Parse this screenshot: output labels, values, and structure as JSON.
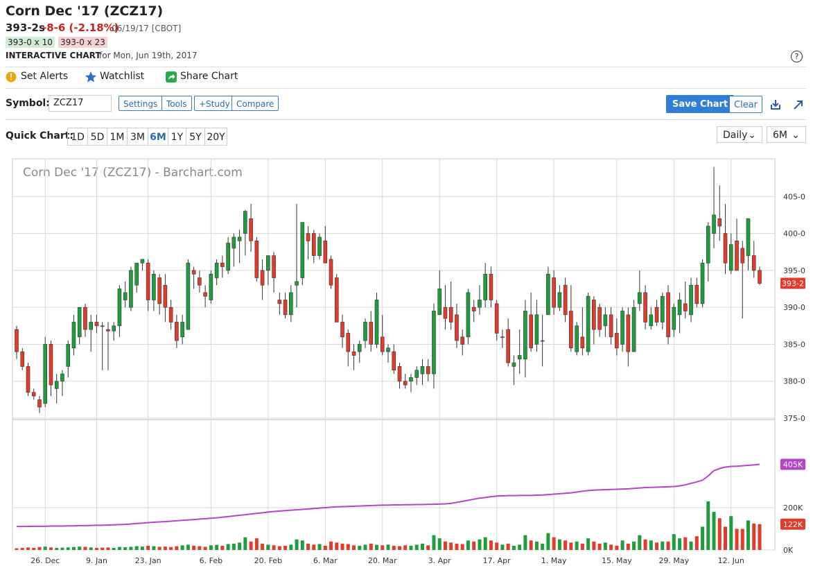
{
  "header": {
    "title": "Corn Dec '17 (ZCZ17)",
    "price": "393-2s",
    "change": "-8-6 (-2.18%)",
    "date": "06/19/17 [CBOT]",
    "bid": "393-0 x 10",
    "ask": "393-0 x 23",
    "chart_label": "INTERACTIVE CHART",
    "chart_for": "for Mon, Jun 19th, 2017",
    "help": "?"
  },
  "toolbar": {
    "items": [
      "Set Alerts",
      "Watchlist",
      "Share Chart"
    ]
  },
  "symbol_row": {
    "label": "Symbol:",
    "symbol": "ZCZ17",
    "buttons": [
      "Settings",
      "Tools",
      "+Study",
      "Compare"
    ],
    "save": "Save Chart",
    "clear": "Clear"
  },
  "quick_chart": {
    "label": "Quick Chart:",
    "ranges": [
      "1D",
      "5D",
      "1M",
      "3M",
      "6M",
      "1Y",
      "5Y",
      "20Y"
    ],
    "interval": "Daily",
    "period": "6M"
  },
  "chart_data": {
    "type": "candlestick",
    "title": "Corn Dec '17 (ZCZ17) - Barchart.com",
    "categories": [
      null,
      null,
      null,
      null,
      null,
      "26. Dec",
      null,
      null,
      null,
      null,
      null,
      null,
      null,
      null,
      "9. Jan",
      null,
      null,
      null,
      null,
      null,
      null,
      null,
      null,
      "23. Jan",
      null,
      null,
      null,
      null,
      null,
      null,
      null,
      null,
      null,
      null,
      "6. Feb",
      null,
      null,
      null,
      null,
      null,
      null,
      null,
      null,
      null,
      "20. Feb",
      null,
      null,
      null,
      null,
      null,
      null,
      null,
      null,
      null,
      "6. Mar",
      null,
      null,
      null,
      null,
      null,
      null,
      null,
      null,
      null,
      "20. Mar",
      null,
      null,
      null,
      null,
      null,
      null,
      null,
      null,
      null,
      "3. Apr",
      null,
      null,
      null,
      null,
      null,
      null,
      null,
      null,
      null,
      "17. Apr",
      null,
      null,
      null,
      null,
      null,
      null,
      null,
      null,
      null,
      "1. May",
      null,
      null,
      null,
      null,
      null,
      null,
      null,
      null,
      null,
      null,
      "15. May",
      null,
      null,
      null,
      null,
      null,
      null,
      null,
      null,
      null,
      "29. May",
      null,
      null,
      null,
      null,
      null,
      null,
      null,
      null,
      null,
      "12. Jun",
      null,
      null,
      null,
      null,
      null
    ],
    "ohlc": [
      [
        387,
        387.5,
        383,
        384
      ],
      [
        384,
        384.5,
        381.5,
        382
      ],
      [
        382,
        382.5,
        378,
        378.5
      ],
      [
        378.5,
        379,
        377.5,
        378
      ],
      [
        377.5,
        378,
        375.7,
        376.5
      ],
      [
        377,
        386,
        376.5,
        385
      ],
      [
        385,
        385.5,
        378,
        379.5
      ],
      [
        379,
        381,
        377,
        380
      ],
      [
        380,
        381.5,
        378,
        381
      ],
      [
        382,
        385.5,
        380.5,
        385
      ],
      [
        384.5,
        389,
        383.5,
        388
      ],
      [
        386,
        390,
        385,
        390
      ],
      [
        390,
        390.5,
        386,
        387
      ],
      [
        387,
        389,
        384,
        388
      ],
      [
        388,
        389,
        386.5,
        387.5
      ],
      [
        387.5,
        388,
        381.5,
        387.4
      ],
      [
        387,
        388,
        381.5,
        386.8
      ],
      [
        386.8,
        388,
        385.5,
        387.5
      ],
      [
        387.5,
        393,
        386,
        392.5
      ],
      [
        391,
        393.5,
        390,
        392
      ],
      [
        390,
        395.5,
        389.5,
        395
      ],
      [
        393,
        396,
        392,
        396
      ],
      [
        396,
        396.5,
        395,
        396.5
      ],
      [
        396,
        396.5,
        389.5,
        391
      ],
      [
        391,
        395,
        389.5,
        394.5
      ],
      [
        394,
        394.5,
        389,
        390.5
      ],
      [
        393,
        394.5,
        388,
        390
      ],
      [
        390,
        391,
        387,
        388
      ],
      [
        388,
        389,
        384.5,
        385.5
      ],
      [
        386,
        389,
        385,
        388
      ],
      [
        387,
        396.5,
        387,
        396
      ],
      [
        395,
        395.5,
        392.5,
        394.5
      ],
      [
        394,
        395,
        392,
        393
      ],
      [
        392,
        393,
        390,
        391.5
      ],
      [
        391,
        395,
        390.5,
        394.5
      ],
      [
        394,
        396.5,
        393,
        396
      ],
      [
        396,
        397,
        394,
        395.5
      ],
      [
        395,
        399.5,
        394.5,
        398.7
      ],
      [
        398,
        400,
        395.5,
        399.5
      ],
      [
        399,
        400.5,
        396,
        399.5
      ],
      [
        400,
        403.2,
        397,
        403
      ],
      [
        402,
        404,
        397.5,
        399
      ],
      [
        399,
        399.5,
        393.5,
        394
      ],
      [
        395,
        396.5,
        391,
        393
      ],
      [
        395,
        397,
        393,
        397
      ],
      [
        397,
        397.5,
        392,
        394
      ],
      [
        391,
        392,
        389,
        390.5
      ],
      [
        391,
        392,
        388.5,
        389
      ],
      [
        389,
        393,
        388,
        392
      ],
      [
        393,
        404,
        390,
        393.5
      ],
      [
        394,
        401.5,
        393,
        401.5
      ],
      [
        400,
        401,
        396.5,
        399
      ],
      [
        400,
        400.5,
        396,
        397
      ],
      [
        397,
        400,
        396.5,
        399.5
      ],
      [
        399,
        401,
        396,
        396
      ],
      [
        396.5,
        397,
        392.5,
        393
      ],
      [
        394,
        394.5,
        388,
        388
      ],
      [
        388,
        389,
        384.5,
        386
      ],
      [
        386.5,
        387,
        382,
        384
      ],
      [
        384,
        385,
        381.5,
        383.5
      ],
      [
        384,
        385.5,
        382.5,
        385
      ],
      [
        385.5,
        388.5,
        384.5,
        388
      ],
      [
        388,
        389.5,
        384,
        385
      ],
      [
        385,
        392,
        384.5,
        391
      ],
      [
        386,
        389,
        383.5,
        384
      ],
      [
        384,
        385,
        382.5,
        384.5
      ],
      [
        384,
        385,
        381,
        381.5
      ],
      [
        382,
        382.5,
        379,
        380
      ],
      [
        380,
        381,
        379,
        379.5
      ],
      [
        380,
        381,
        378.5,
        380.5
      ],
      [
        380.5,
        382,
        379.5,
        381.5
      ],
      [
        381,
        383,
        379.5,
        382
      ],
      [
        382,
        383,
        380,
        381
      ],
      [
        381,
        390.5,
        379,
        389.5
      ],
      [
        389,
        395,
        389,
        392.5
      ],
      [
        390,
        393,
        387,
        388.5
      ],
      [
        390,
        393.5,
        387,
        388
      ],
      [
        389,
        390.5,
        384.5,
        385.5
      ],
      [
        386,
        387,
        383.5,
        385
      ],
      [
        386,
        392.5,
        385,
        392
      ],
      [
        390,
        391,
        388,
        389.5
      ],
      [
        390,
        393,
        389,
        391
      ],
      [
        391,
        396,
        390,
        394.5
      ],
      [
        394.5,
        395.5,
        390,
        391
      ],
      [
        390.5,
        391,
        385.5,
        386.5
      ],
      [
        386,
        387,
        384.5,
        386
      ],
      [
        387,
        388.5,
        382,
        382.5
      ],
      [
        382,
        383.5,
        379.5,
        382.5
      ],
      [
        383,
        387,
        381,
        383.5
      ],
      [
        383,
        391,
        380.5,
        389.5
      ],
      [
        389,
        392,
        384,
        384.5
      ],
      [
        385,
        391,
        384,
        389
      ],
      [
        385.5,
        389,
        382,
        385.5
      ],
      [
        389,
        395.5,
        389,
        394.5
      ],
      [
        394,
        395,
        389,
        390
      ],
      [
        390,
        393,
        389.5,
        392
      ],
      [
        393,
        394,
        388,
        389
      ],
      [
        389.5,
        393,
        384,
        384.5
      ],
      [
        384,
        388,
        383.5,
        387.5
      ],
      [
        386,
        390,
        383.5,
        384.5
      ],
      [
        384,
        392,
        383.5,
        391.5
      ],
      [
        391,
        391.5,
        385,
        387
      ],
      [
        390,
        390.5,
        386,
        387
      ],
      [
        387.5,
        390,
        386,
        389
      ],
      [
        389,
        390,
        385,
        386
      ],
      [
        386.5,
        388.5,
        383.5,
        384.5
      ],
      [
        385,
        390,
        384,
        389.5
      ],
      [
        389,
        390,
        382,
        384
      ],
      [
        384,
        391,
        384,
        390
      ],
      [
        390.5,
        395,
        389.5,
        392
      ],
      [
        392,
        393,
        387,
        388
      ],
      [
        387.5,
        390,
        387,
        389
      ],
      [
        390,
        391,
        387.5,
        388
      ],
      [
        388,
        392,
        387,
        391.5
      ],
      [
        392,
        393,
        385,
        386
      ],
      [
        387,
        390.5,
        386,
        390
      ],
      [
        389,
        392,
        386.5,
        391
      ],
      [
        390.5,
        393.5,
        388.5,
        389.5
      ],
      [
        389,
        394,
        388,
        393
      ],
      [
        393,
        394,
        390,
        390.5
      ],
      [
        390.5,
        396.5,
        390,
        396
      ],
      [
        396,
        401.5,
        393.5,
        401
      ],
      [
        400,
        409,
        398,
        402.5
      ],
      [
        402,
        406.5,
        399,
        401
      ],
      [
        400,
        404,
        394.5,
        396
      ],
      [
        395,
        400,
        394.5,
        398.5
      ],
      [
        399,
        402,
        395,
        395
      ],
      [
        398,
        399,
        388.5,
        396
      ],
      [
        397,
        402,
        395,
        402
      ],
      [
        397,
        399,
        394,
        395
      ],
      [
        395,
        395.5,
        393,
        393.25
      ]
    ],
    "last_label": "393-2",
    "up_color": "#1f9d3c",
    "down_color": "#e23b2b",
    "grid": true,
    "ylim": [
      375,
      410.1
    ],
    "yticks": [
      {
        "value": 375,
        "label": "375-0"
      },
      {
        "value": 380,
        "label": "380-0"
      },
      {
        "value": 385,
        "label": "385-0"
      },
      {
        "value": 390,
        "label": "390-0"
      },
      {
        "value": 395,
        "label": "395-0"
      },
      {
        "value": 400,
        "label": "400-0"
      },
      {
        "value": 405,
        "label": "405-0"
      }
    ],
    "volume": {
      "values": [
        8,
        10,
        12,
        10,
        14,
        16,
        12,
        10,
        11,
        12,
        14,
        16,
        15,
        12,
        10,
        11,
        12,
        10,
        14,
        13,
        15,
        18,
        16,
        20,
        18,
        15,
        16,
        14,
        18,
        22,
        25,
        20,
        18,
        15,
        22,
        24,
        20,
        28,
        30,
        35,
        60,
        40,
        55,
        30,
        25,
        22,
        18,
        20,
        25,
        50,
        45,
        30,
        25,
        28,
        20,
        40,
        35,
        30,
        28,
        22,
        20,
        25,
        30,
        24,
        22,
        25,
        20,
        18,
        22,
        20,
        25,
        30,
        22,
        70,
        55,
        40,
        35,
        30,
        28,
        45,
        40,
        50,
        60,
        45,
        35,
        25,
        30,
        20,
        25,
        70,
        45,
        40,
        30,
        80,
        60,
        50,
        45,
        35,
        40,
        30,
        55,
        40,
        30,
        35,
        25,
        20,
        45,
        30,
        40,
        70,
        50,
        45,
        35,
        40,
        40,
        75,
        55,
        60,
        40,
        65,
        110,
        230,
        180,
        150,
        110,
        160,
        100,
        100,
        140,
        125,
        122
      ],
      "value_label": "122K",
      "ylim": [
        0,
        610
      ],
      "yticks": [
        {
          "value": 0,
          "label": "0K"
        },
        {
          "value": 200,
          "label": "200K"
        }
      ]
    },
    "open_interest": {
      "color": "#b444c9",
      "value_label": "405K",
      "values": [
        111,
        111,
        111,
        112,
        112,
        112,
        113,
        113,
        113,
        114,
        114,
        115,
        115,
        116,
        117,
        117,
        118,
        119,
        120,
        121,
        123,
        125,
        127,
        129,
        131,
        133,
        134,
        136,
        138,
        140,
        142,
        144,
        146,
        148,
        150,
        152,
        155,
        158,
        161,
        164,
        167,
        170,
        173,
        176,
        179,
        182,
        184,
        186,
        188,
        190,
        192,
        194,
        196,
        198,
        200,
        202,
        204,
        205,
        206,
        207,
        208,
        209,
        210,
        211,
        212,
        212,
        213,
        213,
        214,
        214,
        215,
        215,
        216,
        216,
        217,
        218,
        220,
        225,
        230,
        235,
        240,
        245,
        248,
        252,
        255,
        256,
        257,
        257,
        258,
        258,
        258,
        259,
        260,
        262,
        264,
        266,
        268,
        270,
        274,
        278,
        281,
        283,
        284,
        285,
        286,
        287,
        288,
        289,
        291,
        293,
        295,
        296,
        297,
        298,
        299,
        300,
        303,
        308,
        315,
        322,
        330,
        350,
        375,
        385,
        392,
        395,
        396,
        398,
        400,
        402,
        405
      ]
    }
  }
}
